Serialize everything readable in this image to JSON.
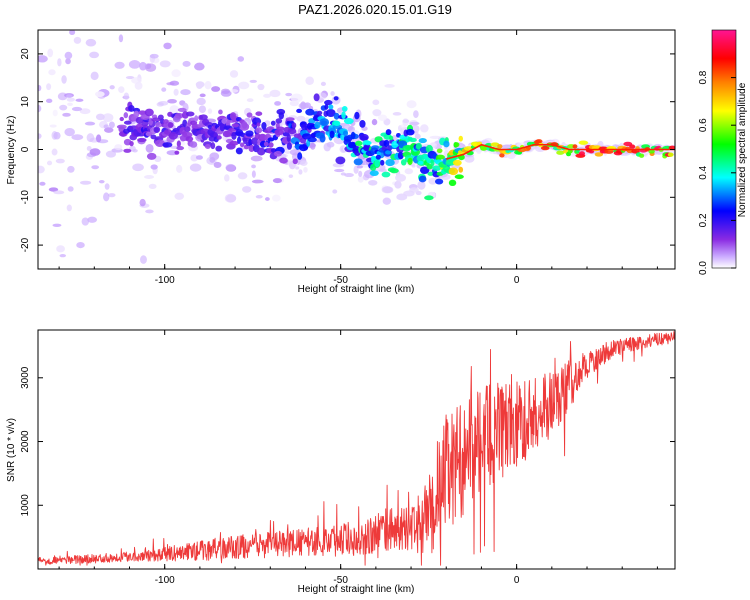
{
  "title": "PAZ1.2026.020.15.01.G19",
  "chart_data": [
    {
      "type": "heatmap",
      "panel": "spectrogram",
      "xlabel": "Height of straight line (km)",
      "ylabel": "Frequency (Hz)",
      "xlim": [
        -136,
        45
      ],
      "ylim": [
        -25,
        25
      ],
      "xticks": [
        -100,
        -50,
        0
      ],
      "yticks": [
        -20,
        -10,
        0,
        10,
        20
      ],
      "xtick_labels": [
        "-100",
        "-50",
        "0"
      ],
      "ytick_labels": [
        "-20",
        "-10",
        "0",
        "10",
        "20"
      ],
      "colorbar": {
        "label": "Normalized spectral amplitude",
        "range": [
          0,
          1
        ],
        "ticks": [
          0.0,
          0.2,
          0.4,
          0.6,
          0.8
        ],
        "tick_labels": [
          "0.0",
          "0.2",
          "0.4",
          "0.6",
          "0.8"
        ],
        "colormap": [
          "#ffffff",
          "#c9a8ff",
          "#8a2be2",
          "#0000ff",
          "#00ffff",
          "#00ff00",
          "#ffff00",
          "#ff8000",
          "#ff0000",
          "#ff1493"
        ]
      },
      "ridge": {
        "x": [
          -110,
          -100,
          -90,
          -80,
          -70,
          -60,
          -55,
          -50,
          -45,
          -40,
          -35,
          -30,
          -25,
          -20,
          -15,
          -10,
          -5,
          0,
          5,
          10,
          15,
          20,
          30,
          45
        ],
        "frequency": [
          5,
          4.5,
          4,
          3.5,
          3,
          3.5,
          6,
          4,
          1,
          -1,
          0,
          1.5,
          -4,
          -2,
          -1,
          1,
          0,
          0,
          1,
          1,
          0,
          0,
          0,
          0
        ],
        "amplitude": [
          0.3,
          0.3,
          0.28,
          0.3,
          0.32,
          0.4,
          0.45,
          0.45,
          0.5,
          0.5,
          0.5,
          0.55,
          0.5,
          0.7,
          0.72,
          0.68,
          0.78,
          0.85,
          0.82,
          0.85,
          0.88,
          0.9,
          0.92,
          0.92
        ]
      },
      "scatter_band_hz": {
        "x": [
          -136,
          -110,
          -90,
          -70,
          -50,
          -40,
          -30,
          -20,
          -15,
          0,
          45
        ],
        "spread": [
          25,
          24,
          15,
          10,
          8,
          8,
          10,
          3,
          1.5,
          0.8,
          0.6
        ]
      }
    },
    {
      "type": "line",
      "panel": "snr",
      "xlabel": "Height of straight line (km)",
      "ylabel": "SNR (10 * v/v)",
      "xlim": [
        -136,
        45
      ],
      "ylim": [
        0,
        3750
      ],
      "xticks": [
        -100,
        -50,
        0
      ],
      "yticks": [
        1000,
        2000,
        3000
      ],
      "xtick_labels": [
        "-100",
        "-50",
        "0"
      ],
      "ytick_labels": [
        "1000",
        "2000",
        "3000"
      ],
      "color": "#ee3a3a",
      "series": [
        {
          "name": "SNR",
          "x": [
            -136,
            -120,
            -110,
            -100,
            -90,
            -80,
            -70,
            -60,
            -50,
            -45,
            -40,
            -35,
            -30,
            -25,
            -22,
            -20,
            -15,
            -10,
            -5,
            0,
            5,
            10,
            15,
            20,
            25,
            30,
            35,
            40,
            45
          ],
          "y": [
            130,
            160,
            200,
            230,
            290,
            340,
            380,
            420,
            460,
            500,
            560,
            630,
            620,
            800,
            1300,
            1500,
            1750,
            2050,
            2150,
            2250,
            2450,
            2600,
            2900,
            3200,
            3400,
            3500,
            3550,
            3600,
            3650
          ],
          "noise": [
            60,
            70,
            80,
            110,
            160,
            190,
            200,
            220,
            260,
            300,
            330,
            360,
            330,
            650,
            900,
            950,
            900,
            850,
            800,
            700,
            600,
            550,
            400,
            220,
            160,
            120,
            110,
            100,
            100
          ]
        }
      ]
    }
  ]
}
